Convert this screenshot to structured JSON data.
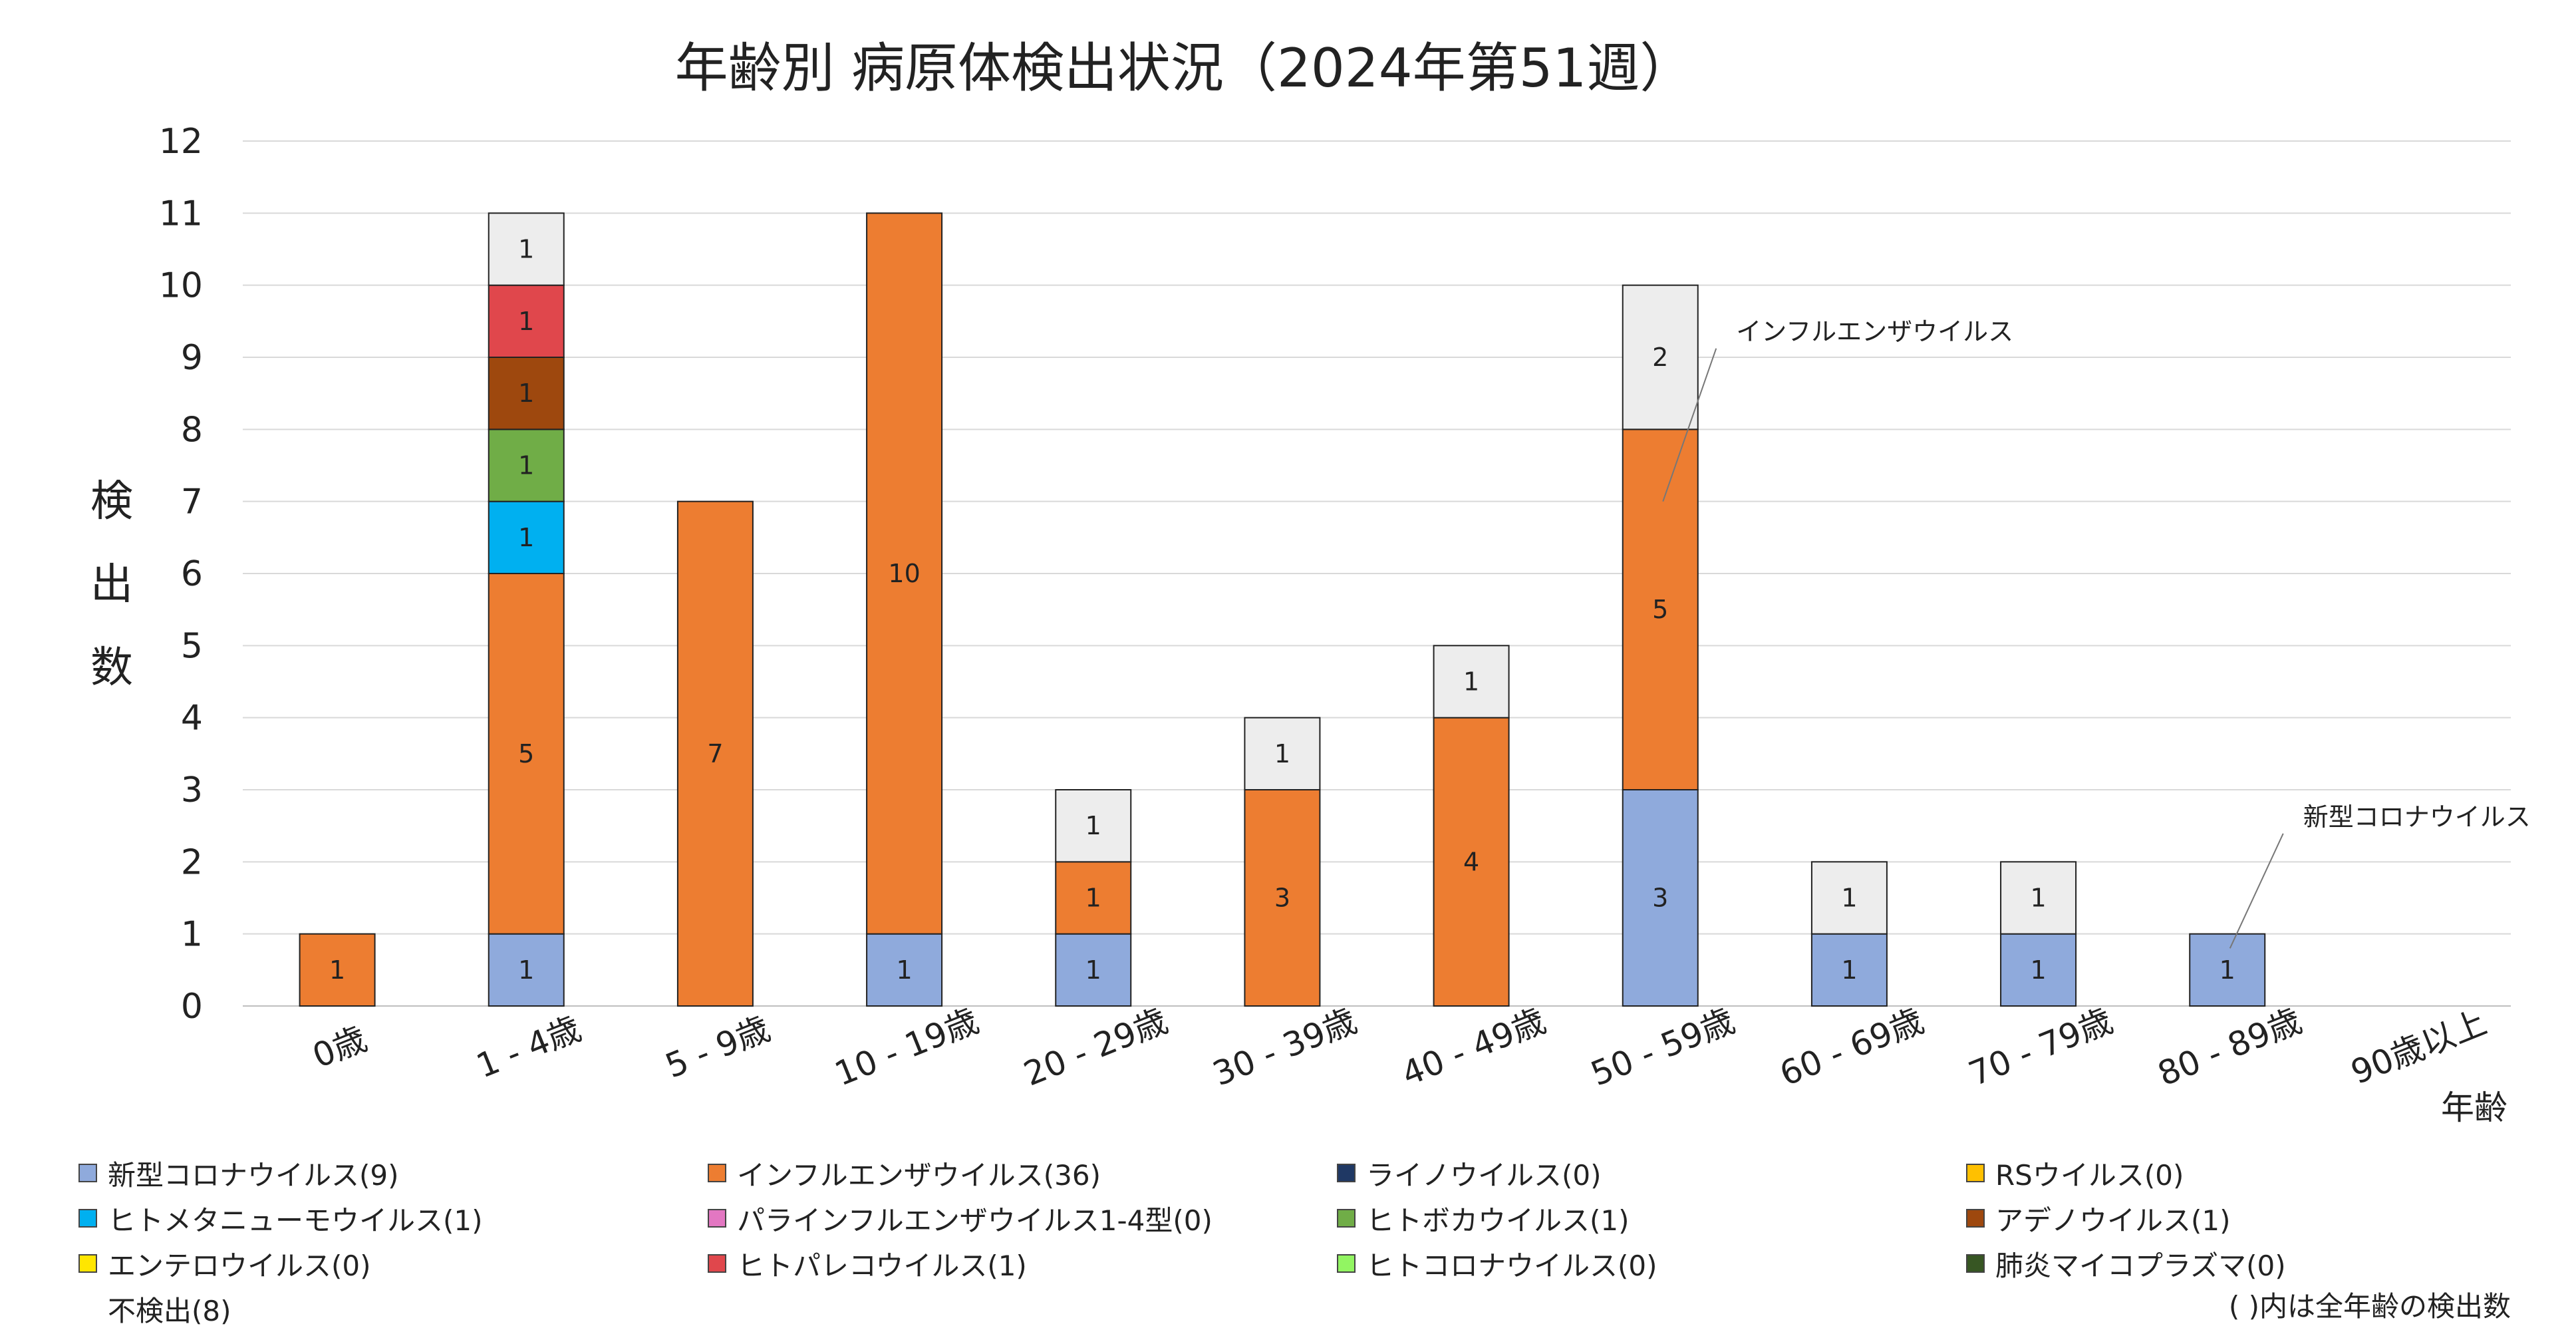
{
  "chart_data": {
    "type": "bar",
    "stacked": true,
    "title": "年齢別 病原体検出状況（2024年第51週）",
    "ylabel": "検出数",
    "xlabel": "年齢",
    "ylim": [
      0,
      12
    ],
    "yticks": [
      0,
      1,
      2,
      3,
      4,
      5,
      6,
      7,
      8,
      9,
      10,
      11,
      12
    ],
    "grid": true,
    "categories": [
      "0歳",
      "1 - 4歳",
      "5 - 9歳",
      "10 - 19歳",
      "20 - 29歳",
      "30 - 39歳",
      "40 - 49歳",
      "50 - 59歳",
      "60 - 69歳",
      "70 - 79歳",
      "80 - 89歳",
      "90歳以上"
    ],
    "series": [
      {
        "name": "新型コロナウイルス",
        "color": "#8faadc",
        "values": [
          0,
          1,
          0,
          1,
          1,
          0,
          0,
          3,
          1,
          1,
          1,
          0
        ]
      },
      {
        "name": "インフルエンザウイルス",
        "color": "#ed7d31",
        "values": [
          1,
          5,
          7,
          10,
          1,
          3,
          4,
          5,
          0,
          0,
          0,
          0
        ]
      },
      {
        "name": "ヒトメタニューモウイルス",
        "color": "#00b0f0",
        "values": [
          0,
          1,
          0,
          0,
          0,
          0,
          0,
          0,
          0,
          0,
          0,
          0
        ]
      },
      {
        "name": "ヒトボカウイルス",
        "color": "#70ad47",
        "values": [
          0,
          1,
          0,
          0,
          0,
          0,
          0,
          0,
          0,
          0,
          0,
          0
        ]
      },
      {
        "name": "アデノウイルス",
        "color": "#9e480e",
        "values": [
          0,
          1,
          0,
          0,
          0,
          0,
          0,
          0,
          0,
          0,
          0,
          0
        ]
      },
      {
        "name": "ヒトパレコウイルス",
        "color": "#e0474c",
        "values": [
          0,
          1,
          0,
          0,
          0,
          0,
          0,
          0,
          0,
          0,
          0,
          0
        ]
      },
      {
        "name": "不検出",
        "color": "#ededed",
        "values": [
          0,
          1,
          0,
          0,
          1,
          1,
          1,
          2,
          1,
          1,
          0,
          0
        ]
      }
    ],
    "data_labels": [
      [
        {
          "s": 1,
          "v": "1"
        }
      ],
      [
        {
          "s": 0,
          "v": "1"
        },
        {
          "s": 1,
          "v": "5"
        },
        {
          "s": 2,
          "v": "1"
        },
        {
          "s": 3,
          "v": "1"
        },
        {
          "s": 4,
          "v": "1"
        },
        {
          "s": 5,
          "v": "1"
        },
        {
          "s": 6,
          "v": "1"
        }
      ],
      [
        {
          "s": 1,
          "v": "7"
        }
      ],
      [
        {
          "s": 0,
          "v": "1"
        },
        {
          "s": 1,
          "v": "10"
        }
      ],
      [
        {
          "s": 0,
          "v": "1"
        },
        {
          "s": 1,
          "v": "1"
        },
        {
          "s": 6,
          "v": "1"
        }
      ],
      [
        {
          "s": 1,
          "v": "3"
        },
        {
          "s": 6,
          "v": "1"
        }
      ],
      [
        {
          "s": 1,
          "v": "4"
        },
        {
          "s": 6,
          "v": "1"
        }
      ],
      [
        {
          "s": 0,
          "v": "3"
        },
        {
          "s": 1,
          "v": "5"
        },
        {
          "s": 6,
          "v": "2"
        }
      ],
      [
        {
          "s": 0,
          "v": "1"
        },
        {
          "s": 6,
          "v": "1"
        }
      ],
      [
        {
          "s": 0,
          "v": "1"
        },
        {
          "s": 6,
          "v": "1"
        }
      ],
      [
        {
          "s": 0,
          "v": "1"
        }
      ],
      []
    ],
    "annotations": [
      {
        "text": "インフルエンザウイルス",
        "category": "50 - 59歳",
        "value": 7.0
      },
      {
        "text": "新型コロナウイルス",
        "category": "80 - 89歳",
        "value": 0.8
      }
    ]
  },
  "legend": {
    "items": [
      {
        "label": "新型コロナウイルス(9)",
        "color": "#8faadc"
      },
      {
        "label": "インフルエンザウイルス(36)",
        "color": "#ed7d31"
      },
      {
        "label": "ライノウイルス(0)",
        "color": "#1f3864"
      },
      {
        "label": "RSウイルス(0)",
        "color": "#ffc000"
      },
      {
        "label": "ヒトメタニューモウイルス(1)",
        "color": "#00b0f0"
      },
      {
        "label": "パラインフルエンザウイルス1-4型(0)",
        "color": "#e377c2"
      },
      {
        "label": "ヒトボカウイルス(1)",
        "color": "#70ad47"
      },
      {
        "label": "アデノウイルス(1)",
        "color": "#9e480e"
      },
      {
        "label": "エンテロウイルス(0)",
        "color": "#ffe600"
      },
      {
        "label": "ヒトパレコウイルス(1)",
        "color": "#e0474c"
      },
      {
        "label": "ヒトコロナウイルス(0)",
        "color": "#92f562"
      },
      {
        "label": "肺炎マイコプラズマ(0)",
        "color": "#375623"
      },
      {
        "label": "不検出(8)",
        "color": "#ededed"
      }
    ],
    "note": "( )内は全年齢の検出数"
  }
}
